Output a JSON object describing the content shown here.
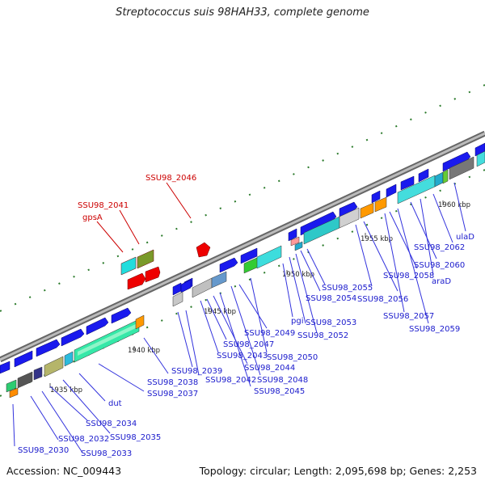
{
  "title": "Streptococcus suis 98HAH33, complete genome",
  "footer": {
    "accession": "Accession: NC_009443",
    "summary": "Topology: circular; Length: 2,095,698 bp; Genes: 2,253"
  },
  "ticks": [
    "1935 kbp",
    "1940 kbp",
    "1945 kbp",
    "1950 kbp",
    "1955 kbp",
    "1960 kbp"
  ],
  "gene_labels_blue": [
    "SSU98_2030",
    "SSU98_2032",
    "SSU98_2033",
    "SSU98_2034",
    "SSU98_2035",
    "dut",
    "SSU98_2037",
    "SSU98_2038",
    "SSU98_2039",
    "SSU98_2042",
    "SSU98_2043",
    "SSU98_2044",
    "SSU98_2045",
    "SSU98_2047",
    "SSU98_2048",
    "SSU98_2049",
    "SSU98_2050",
    "pgi",
    "SSU98_2052",
    "SSU98_2053",
    "SSU98_2054",
    "SSU98_2055",
    "SSU98_2056",
    "SSU98_2057",
    "SSU98_2058",
    "SSU98_2059",
    "SSU98_2060",
    "araD",
    "SSU98_2062",
    "ulaD"
  ],
  "gene_labels_red": [
    "SSU98_2046",
    "SSU98_2041",
    "gpsA"
  ],
  "colors": {
    "forward": "#0000ff",
    "rna": "#ff0000",
    "backbone": "#888888",
    "label_blue": "#1a1acc",
    "label_red": "#cc0000"
  }
}
